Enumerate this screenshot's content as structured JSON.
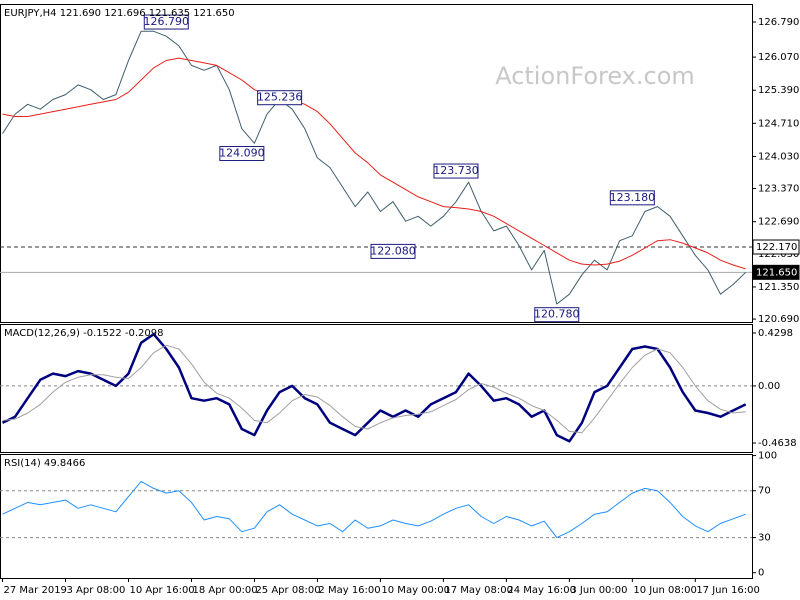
{
  "chart_data": [
    {
      "type": "line",
      "title": "EURJPY,H4  121.690 121.696 121.635 121.650",
      "watermark": "ActionForex.com",
      "xlim": [
        -0.2,
        59.5
      ],
      "ylim": [
        120.63,
        127.14
      ],
      "yticks": [
        {
          "value": 126.79,
          "label": "126.790"
        },
        {
          "value": 126.07,
          "label": "126.070"
        },
        {
          "value": 125.39,
          "label": "125.390"
        },
        {
          "value": 124.71,
          "label": "124.710"
        },
        {
          "value": 124.03,
          "label": "124.030"
        },
        {
          "value": 123.37,
          "label": "123.370"
        },
        {
          "value": 122.69,
          "label": "122.690"
        },
        {
          "value": 122.03,
          "label": "122.030"
        },
        {
          "value": 121.35,
          "label": "121.350"
        },
        {
          "value": 120.69,
          "label": "120.690"
        }
      ],
      "series": [
        {
          "color": "#3f5f6f",
          "values": [
            124.5,
            124.9,
            125.1,
            125.0,
            125.2,
            125.3,
            125.5,
            125.4,
            125.2,
            125.3,
            126.0,
            126.6,
            126.6,
            126.5,
            126.3,
            125.9,
            125.8,
            125.9,
            125.4,
            124.6,
            124.3,
            124.9,
            125.2,
            125.0,
            124.6,
            124.0,
            123.8,
            123.4,
            123.0,
            123.3,
            122.9,
            123.1,
            122.7,
            122.8,
            122.6,
            122.8,
            123.1,
            123.5,
            122.9,
            122.5,
            122.6,
            122.2,
            121.7,
            122.1,
            121.0,
            121.2,
            121.6,
            121.9,
            121.7,
            122.3,
            122.4,
            122.9,
            123.0,
            122.8,
            122.4,
            122.0,
            121.7,
            121.2,
            121.4,
            121.65
          ]
        },
        {
          "color": "#e8201a",
          "values": [
            124.9,
            124.85,
            124.85,
            124.9,
            124.95,
            125.0,
            125.05,
            125.1,
            125.15,
            125.2,
            125.35,
            125.6,
            125.85,
            126.0,
            126.05,
            126.0,
            125.95,
            125.9,
            125.75,
            125.6,
            125.4,
            125.3,
            125.25,
            125.2,
            125.1,
            124.95,
            124.7,
            124.4,
            124.1,
            123.9,
            123.65,
            123.5,
            123.35,
            123.2,
            123.1,
            123.0,
            122.98,
            122.95,
            122.9,
            122.8,
            122.65,
            122.5,
            122.35,
            122.2,
            122.05,
            121.9,
            121.82,
            121.8,
            121.82,
            121.88,
            122.0,
            122.15,
            122.3,
            122.32,
            122.25,
            122.15,
            122.05,
            121.9,
            121.8,
            121.72
          ]
        }
      ],
      "annotations": [
        {
          "label": "126.790",
          "value": 126.79,
          "x": 13
        },
        {
          "label": "125.236",
          "value": 125.236,
          "x": 22
        },
        {
          "label": "124.090",
          "value": 124.09,
          "x": 19
        },
        {
          "label": "123.730",
          "value": 123.73,
          "x": 36
        },
        {
          "label": "122.080",
          "value": 122.08,
          "x": 31
        },
        {
          "label": "123.180",
          "value": 123.18,
          "x": 50
        },
        {
          "label": "120.780",
          "value": 120.78,
          "x": 44
        }
      ],
      "price_lines": [
        {
          "value": 122.17,
          "label": "122.170",
          "style": "dashed"
        },
        {
          "value": 121.65,
          "label": "121.650",
          "style": "solid"
        }
      ]
    },
    {
      "type": "line",
      "title": "MACD(12,26,9) -0.1522 -0.2098",
      "xlim": [
        -0.2,
        59.5
      ],
      "ylim": [
        -0.537,
        0.495
      ],
      "yticks": [
        0.4298,
        {
          "value": 0,
          "label": "0.00"
        },
        -0.4638
      ],
      "levels": [
        0
      ],
      "series": [
        {
          "color": "#00007f",
          "values": [
            -0.3,
            -0.25,
            -0.1,
            0.05,
            0.1,
            0.08,
            0.12,
            0.1,
            0.05,
            0.0,
            0.1,
            0.35,
            0.42,
            0.3,
            0.15,
            -0.1,
            -0.12,
            -0.1,
            -0.15,
            -0.35,
            -0.4,
            -0.2,
            -0.05,
            0.0,
            -0.1,
            -0.15,
            -0.3,
            -0.35,
            -0.4,
            -0.3,
            -0.2,
            -0.25,
            -0.2,
            -0.25,
            -0.15,
            -0.1,
            -0.05,
            0.1,
            0.0,
            -0.12,
            -0.1,
            -0.15,
            -0.25,
            -0.2,
            -0.4,
            -0.45,
            -0.3,
            -0.05,
            0.0,
            0.15,
            0.3,
            0.32,
            0.3,
            0.15,
            -0.05,
            -0.2,
            -0.22,
            -0.25,
            -0.2,
            -0.15
          ]
        },
        {
          "color": "#a0a0a0",
          "values": [
            -0.28,
            -0.27,
            -0.22,
            -0.15,
            -0.05,
            0.03,
            0.07,
            0.09,
            0.09,
            0.07,
            0.06,
            0.15,
            0.27,
            0.33,
            0.3,
            0.18,
            0.03,
            -0.06,
            -0.1,
            -0.18,
            -0.28,
            -0.3,
            -0.22,
            -0.12,
            -0.07,
            -0.09,
            -0.16,
            -0.25,
            -0.33,
            -0.35,
            -0.3,
            -0.26,
            -0.24,
            -0.23,
            -0.21,
            -0.16,
            -0.11,
            -0.03,
            0.02,
            -0.01,
            -0.06,
            -0.1,
            -0.16,
            -0.2,
            -0.28,
            -0.37,
            -0.38,
            -0.26,
            -0.12,
            0.02,
            0.15,
            0.25,
            0.3,
            0.27,
            0.15,
            0.0,
            -0.12,
            -0.19,
            -0.22,
            -0.21
          ]
        }
      ]
    },
    {
      "type": "line",
      "title": "RSI(14) 49.8466",
      "xlim": [
        -0.2,
        59.5
      ],
      "ylim": [
        -4.5,
        100.5
      ],
      "yticks": [
        100,
        70,
        30,
        0
      ],
      "levels": [
        70,
        30
      ],
      "xticks": [
        {
          "value": 0,
          "label": "27 Mar 2019"
        },
        {
          "value": 5,
          "label": "3 Apr 08:00"
        },
        {
          "value": 10,
          "label": "10 Apr 16:00"
        },
        {
          "value": 15,
          "label": "18 Apr 00:00"
        },
        {
          "value": 20,
          "label": "25 Apr 08:00"
        },
        {
          "value": 25,
          "label": "2 May 16:00"
        },
        {
          "value": 30,
          "label": "10 May 00:00"
        },
        {
          "value": 35,
          "label": "17 May 08:00"
        },
        {
          "value": 40,
          "label": "24 May 16:00"
        },
        {
          "value": 45,
          "label": "3 Jun 00:00"
        },
        {
          "value": 50,
          "label": "10 Jun 08:00"
        },
        {
          "value": 55,
          "label": "17 Jun 16:00"
        }
      ],
      "series": [
        {
          "color": "#1e90ff",
          "values": [
            50,
            55,
            60,
            58,
            60,
            62,
            55,
            58,
            55,
            52,
            65,
            78,
            72,
            68,
            70,
            60,
            45,
            48,
            46,
            35,
            38,
            52,
            58,
            50,
            45,
            40,
            42,
            35,
            45,
            38,
            40,
            45,
            42,
            40,
            44,
            50,
            55,
            58,
            48,
            42,
            48,
            45,
            40,
            44,
            30,
            35,
            42,
            50,
            52,
            60,
            68,
            72,
            70,
            60,
            48,
            40,
            35,
            42,
            46,
            50
          ]
        }
      ]
    }
  ]
}
